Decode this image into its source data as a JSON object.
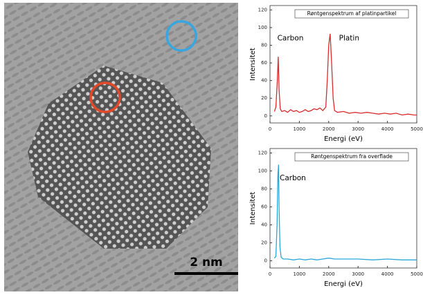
{
  "image": {
    "scale_label": "2 nm"
  },
  "chart_data": [
    {
      "type": "line",
      "title": "Røntgenspektrum af platinpartikel",
      "x_label": "Energi (eV)",
      "y_label": "Intensitet",
      "color": "#d92b2b",
      "annotations": [
        "Carbon",
        "Platin"
      ],
      "x": [
        150,
        200,
        250,
        280,
        310,
        350,
        400,
        500,
        600,
        700,
        800,
        900,
        1000,
        1100,
        1200,
        1300,
        1400,
        1500,
        1600,
        1700,
        1800,
        1900,
        1950,
        2000,
        2050,
        2100,
        2150,
        2200,
        2300,
        2500,
        2700,
        2900,
        3100,
        3300,
        3500,
        3700,
        3900,
        4100,
        4300,
        4500,
        4700,
        4900,
        5000
      ],
      "values": [
        5,
        10,
        40,
        67,
        30,
        8,
        5,
        6,
        4,
        7,
        5,
        6,
        4,
        5,
        7,
        5,
        6,
        8,
        7,
        9,
        6,
        10,
        40,
        80,
        93,
        60,
        20,
        6,
        4,
        5,
        3,
        4,
        3,
        4,
        3,
        2,
        3,
        2,
        3,
        1,
        2,
        1,
        1
      ],
      "xlim": [
        0,
        5000
      ],
      "ylim": [
        -8,
        125
      ],
      "xticks": [
        0,
        1000,
        2000,
        3000,
        4000,
        5000
      ],
      "yticks": [
        0,
        20,
        40,
        60,
        80,
        100,
        120
      ]
    },
    {
      "type": "line",
      "title": "Røntgenspektrum fra overflade",
      "x_label": "Energi (eV)",
      "y_label": "Intensitet",
      "color": "#2ba6d9",
      "annotations": [
        "Carbon"
      ],
      "x": [
        150,
        200,
        240,
        270,
        290,
        310,
        340,
        380,
        450,
        600,
        800,
        1000,
        1200,
        1400,
        1600,
        1800,
        2000,
        2200,
        2500,
        3000,
        3500,
        4000,
        4500,
        5000
      ],
      "values": [
        3,
        5,
        40,
        95,
        107,
        60,
        15,
        4,
        2,
        2,
        1,
        2,
        1,
        2,
        1,
        2,
        3,
        2,
        2,
        2,
        1,
        2,
        1,
        1
      ],
      "xlim": [
        0,
        5000
      ],
      "ylim": [
        -8,
        125
      ],
      "xticks": [
        0,
        1000,
        2000,
        3000,
        4000,
        5000
      ],
      "yticks": [
        0,
        20,
        40,
        60,
        80,
        100,
        120
      ]
    }
  ]
}
